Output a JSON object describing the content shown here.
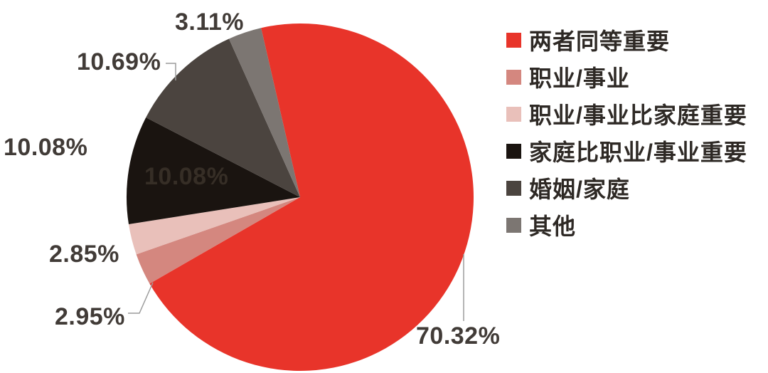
{
  "chart_data": {
    "type": "pie",
    "title": "",
    "unit": "%",
    "direction": "clockwise",
    "start_angle_deg": -13,
    "legend_position": "right",
    "background": "#ffffff",
    "slices": [
      {
        "label": "两者同等重要",
        "value": 70.32,
        "pct_label": "70.32%",
        "color": "#e8342a"
      },
      {
        "label": "职业/事业",
        "value": 2.95,
        "pct_label": "2.95%",
        "color": "#d4877f"
      },
      {
        "label": "职业/事业比家庭重要",
        "value": 2.85,
        "pct_label": "2.85%",
        "color": "#e9c0ba"
      },
      {
        "label": "家庭比职业/事业重要",
        "value": 10.08,
        "pct_label": "10.08%",
        "color": "#1a1410"
      },
      {
        "label": "婚姻/家庭",
        "value": 10.69,
        "pct_label": "10.69%",
        "color": "#4b443f"
      },
      {
        "label": "其他",
        "value": 3.11,
        "pct_label": "3.11%",
        "color": "#7c7672"
      }
    ],
    "inner_label": "10.08%",
    "leader_line_color": "#9c9c9c",
    "label_color": "#413b37"
  }
}
